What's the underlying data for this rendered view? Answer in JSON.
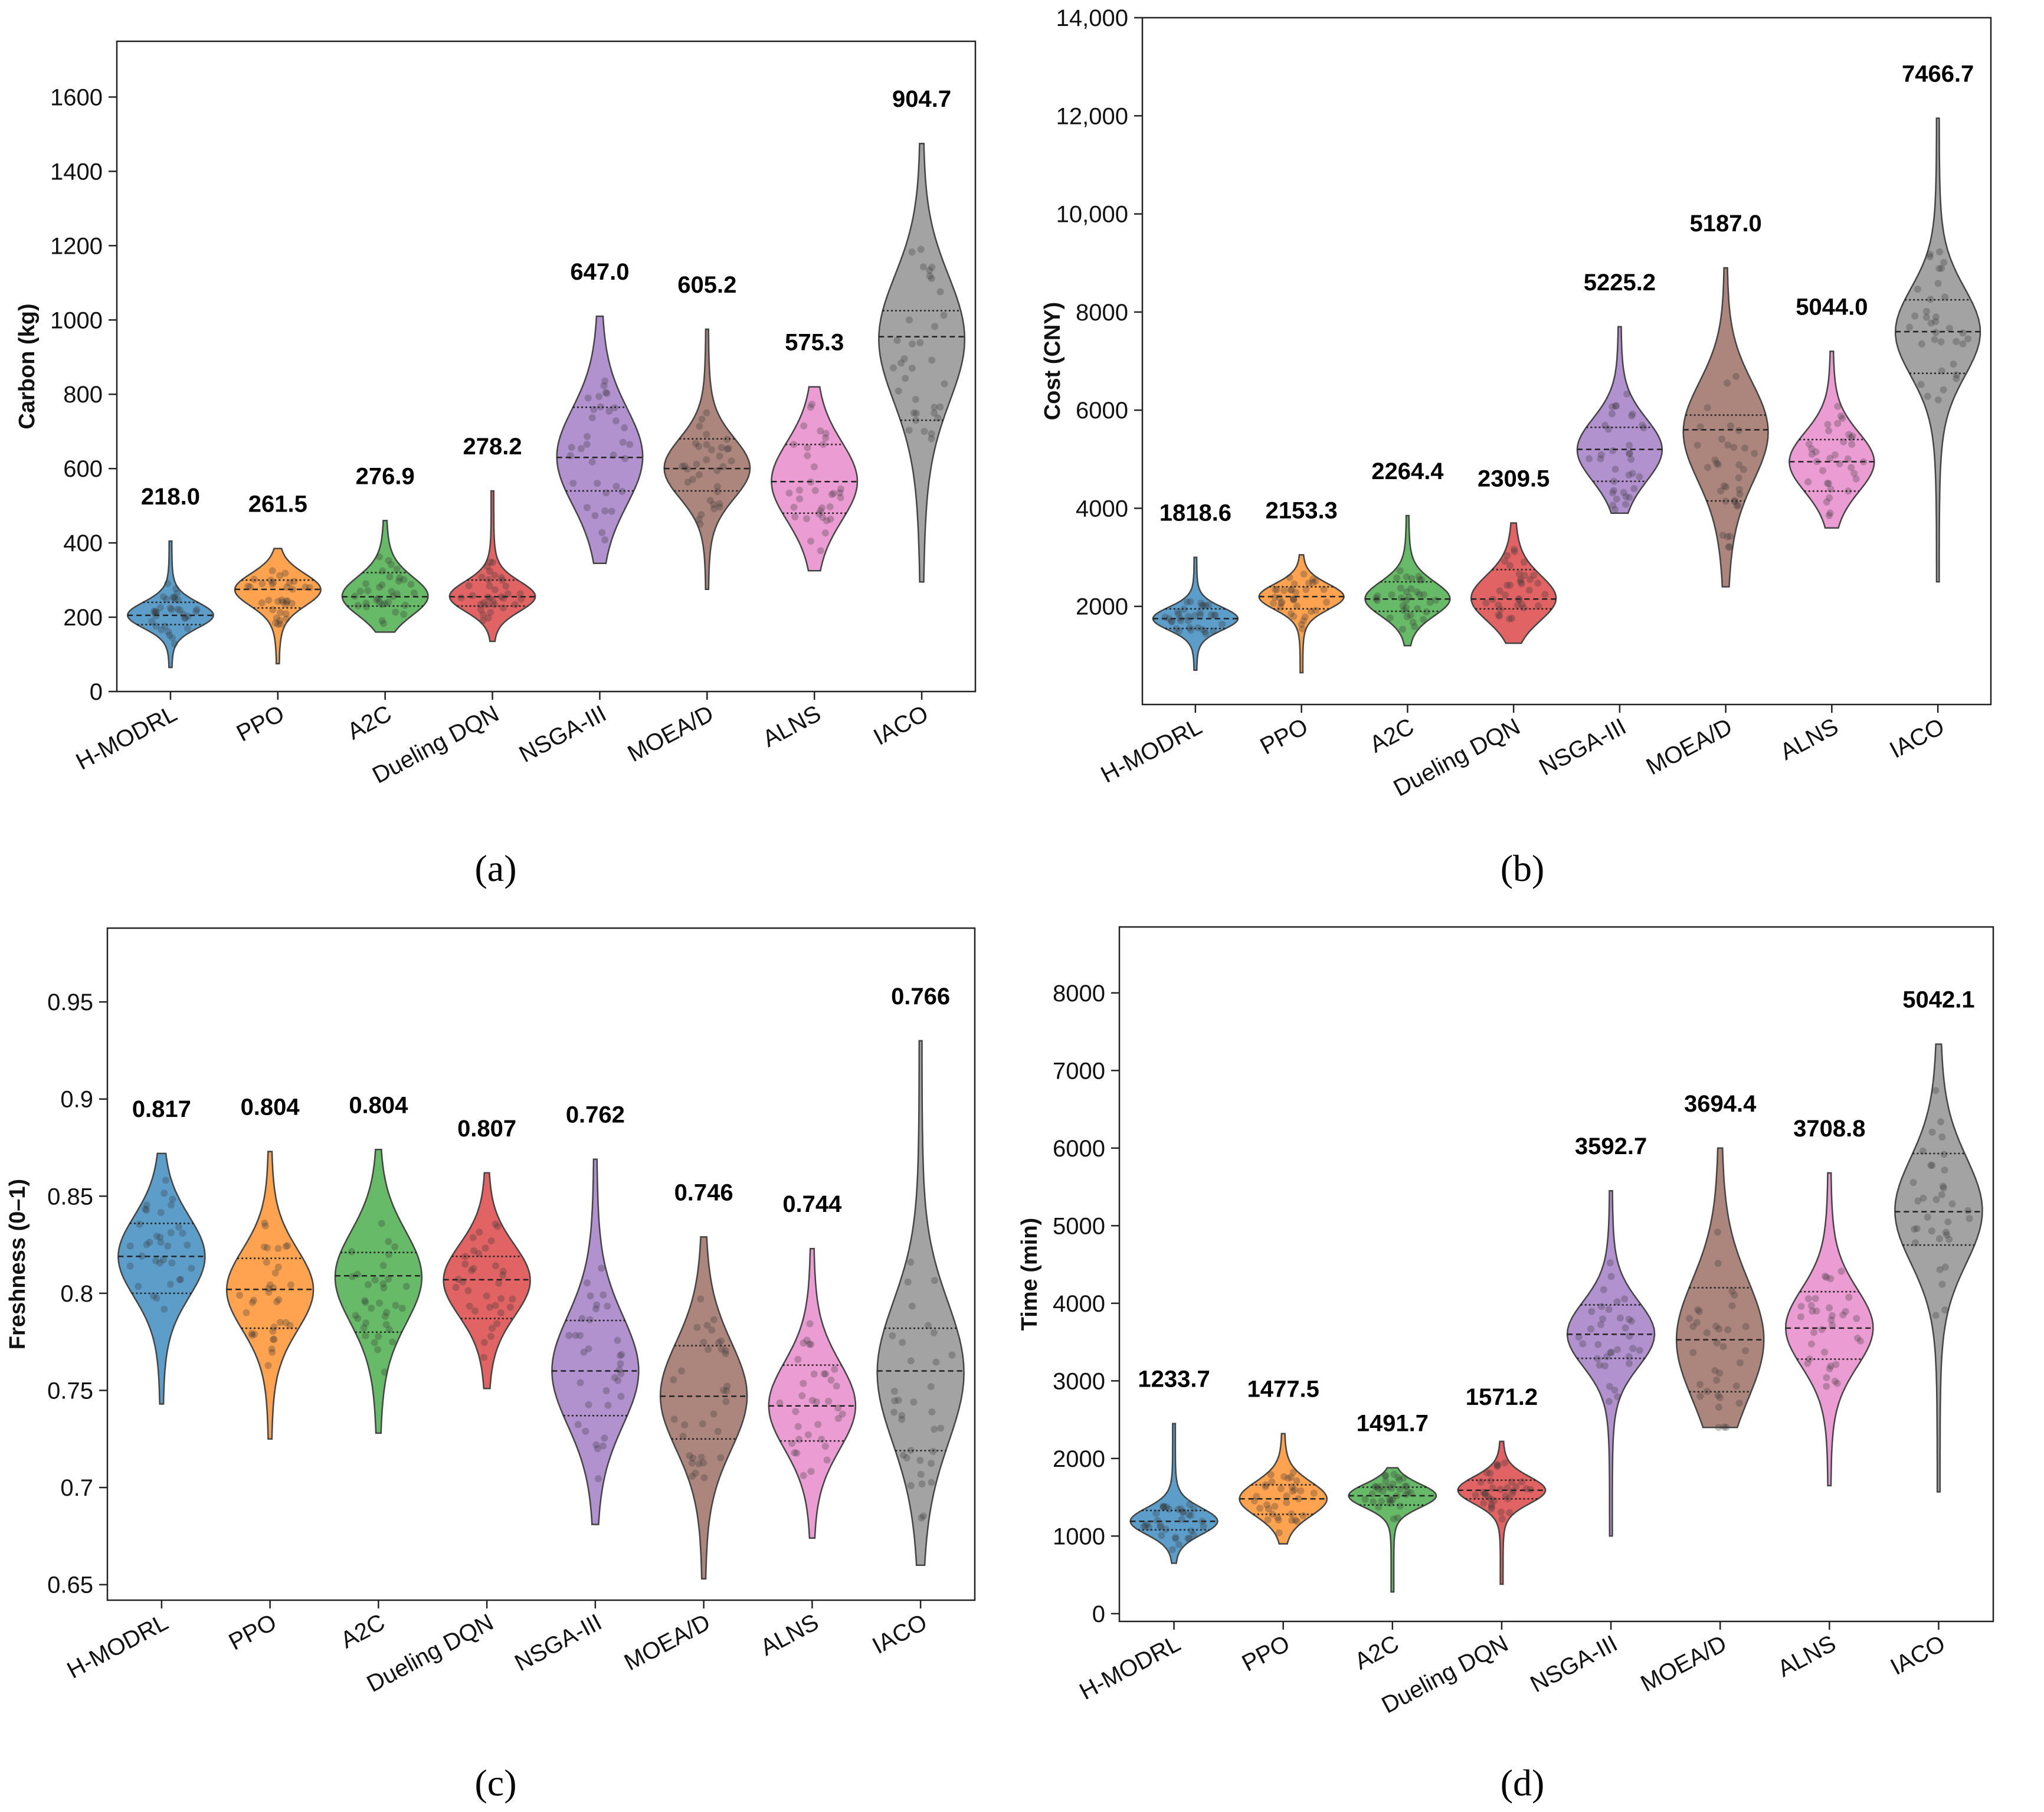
{
  "colors": [
    "#1f77b4",
    "#ff7f0e",
    "#2ca02c",
    "#d62728",
    "#9467bd",
    "#8c564b",
    "#e377c2",
    "#7f7f7f"
  ],
  "captions": {
    "a": "(a)",
    "b": "(b)",
    "c": "(c)",
    "d": "(d)"
  },
  "chart_data": [
    {
      "type": "violin",
      "ylabel": "Carbon (kg)",
      "categories": [
        "H-MODRL",
        "PPO",
        "A2C",
        "Dueling DQN",
        "NSGA-III",
        "MOEA/D",
        "ALNS",
        "IACO"
      ],
      "ylim": [
        0,
        1750
      ],
      "yticks": [
        0,
        200,
        400,
        600,
        800,
        1000,
        1200,
        1400,
        1600
      ],
      "ytick_labels": [
        "0",
        "200",
        "400",
        "600",
        "800",
        "1000",
        "1200",
        "1400",
        "1600"
      ],
      "mean_labels": [
        "218.0",
        "261.5",
        "276.9",
        "278.2",
        "647.0",
        "605.2",
        "575.3",
        "904.7"
      ],
      "min": [
        65,
        75,
        160,
        135,
        345,
        275,
        325,
        295
      ],
      "max": [
        405,
        385,
        460,
        540,
        1010,
        975,
        820,
        1475
      ],
      "q1": [
        180,
        225,
        230,
        230,
        540,
        540,
        480,
        730
      ],
      "median": [
        205,
        275,
        255,
        255,
        630,
        600,
        565,
        955
      ],
      "q3": [
        240,
        300,
        320,
        300,
        765,
        680,
        665,
        1025
      ],
      "grid": false
    },
    {
      "type": "violin",
      "ylabel": "Cost (CNY)",
      "categories": [
        "H-MODRL",
        "PPO",
        "A2C",
        "Dueling DQN",
        "NSGA-III",
        "MOEA/D",
        "ALNS",
        "IACO"
      ],
      "ylim": [
        0,
        14000
      ],
      "yticks": [
        2000,
        4000,
        6000,
        8000,
        10000,
        12000,
        14000
      ],
      "ytick_labels": [
        "2000",
        "4000",
        "6000",
        "8000",
        "10,000",
        "12,000",
        "14,000"
      ],
      "mean_labels": [
        "1818.6",
        "2153.3",
        "2264.4",
        "2309.5",
        "5225.2",
        "5187.0",
        "5044.0",
        "7466.7"
      ],
      "min": [
        700,
        650,
        1200,
        1250,
        3900,
        2400,
        3600,
        2500
      ],
      "max": [
        3000,
        3050,
        3850,
        3700,
        7700,
        8900,
        7200,
        11950
      ],
      "q1": [
        1550,
        1950,
        1900,
        1950,
        4550,
        4150,
        4350,
        6750
      ],
      "median": [
        1750,
        2200,
        2150,
        2150,
        5200,
        5600,
        4950,
        7600
      ],
      "q3": [
        1950,
        2400,
        2500,
        2750,
        5650,
        5900,
        5400,
        8250
      ],
      "grid": false
    },
    {
      "type": "violin",
      "ylabel": "Freshness (0–1)",
      "categories": [
        "H-MODRL",
        "PPO",
        "A2C",
        "Dueling DQN",
        "NSGA-III",
        "MOEA/D",
        "ALNS",
        "IACO"
      ],
      "ylim": [
        0.642,
        0.988
      ],
      "yticks": [
        0.65,
        0.7,
        0.75,
        0.8,
        0.85,
        0.9,
        0.95
      ],
      "ytick_labels": [
        "0.65",
        "0.7",
        "0.75",
        "0.8",
        "0.85",
        "0.9",
        "0.95"
      ],
      "mean_labels": [
        "0.817",
        "0.804",
        "0.804",
        "0.807",
        "0.762",
        "0.746",
        "0.744",
        "0.766"
      ],
      "min": [
        0.743,
        0.725,
        0.728,
        0.751,
        0.681,
        0.653,
        0.674,
        0.66
      ],
      "max": [
        0.872,
        0.873,
        0.874,
        0.862,
        0.869,
        0.829,
        0.823,
        0.93
      ],
      "q1": [
        0.8,
        0.782,
        0.78,
        0.787,
        0.737,
        0.725,
        0.724,
        0.719
      ],
      "median": [
        0.819,
        0.802,
        0.809,
        0.807,
        0.76,
        0.747,
        0.742,
        0.76
      ],
      "q3": [
        0.836,
        0.818,
        0.821,
        0.819,
        0.786,
        0.773,
        0.763,
        0.782
      ],
      "grid": false
    },
    {
      "type": "violin",
      "ylabel": "Time (min)",
      "categories": [
        "H-MODRL",
        "PPO",
        "A2C",
        "Dueling DQN",
        "NSGA-III",
        "MOEA/D",
        "ALNS",
        "IACO"
      ],
      "ylim": [
        -100,
        8850
      ],
      "yticks": [
        0,
        1000,
        2000,
        3000,
        4000,
        5000,
        6000,
        7000,
        8000
      ],
      "ytick_labels": [
        "0",
        "1000",
        "2000",
        "3000",
        "4000",
        "5000",
        "6000",
        "7000",
        "8000"
      ],
      "mean_labels": [
        "1233.7",
        "1477.5",
        "1491.7",
        "1571.2",
        "3592.7",
        "3694.4",
        "3708.8",
        "5042.1"
      ],
      "min": [
        650,
        900,
        280,
        380,
        1000,
        2400,
        1650,
        1570
      ],
      "max": [
        2450,
        2320,
        1880,
        2220,
        5450,
        6000,
        5680,
        7340
      ],
      "q1": [
        1080,
        1280,
        1400,
        1480,
        3290,
        2860,
        3280,
        4750
      ],
      "median": [
        1190,
        1480,
        1520,
        1590,
        3600,
        3530,
        3680,
        5180
      ],
      "q3": [
        1330,
        1660,
        1630,
        1720,
        3980,
        4200,
        4150,
        5930
      ],
      "grid": false
    }
  ]
}
